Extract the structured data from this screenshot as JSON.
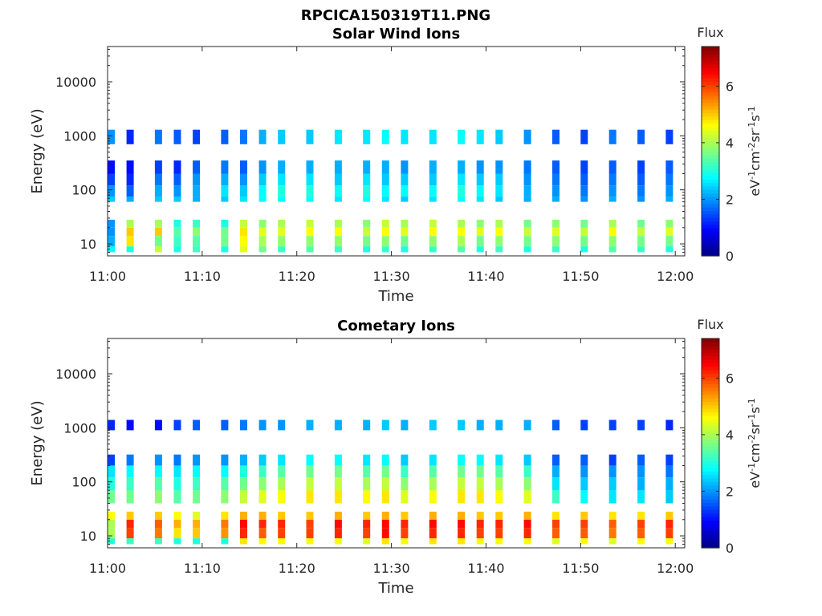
{
  "figure": {
    "title": "RPCICA150319T11.PNG"
  },
  "chart_data": [
    {
      "type": "heatmap",
      "title": "Solar Wind Ions",
      "xlabel": "Time",
      "ylabel": "Energy (eV)",
      "x_ticks": [
        "11:00",
        "11:10",
        "11:20",
        "11:30",
        "11:40",
        "11:50",
        "12:00"
      ],
      "y_ticks": [
        "10",
        "100",
        "1000",
        "10000"
      ],
      "xlim": [
        "11:00",
        "12:01"
      ],
      "ylim": [
        6,
        45000
      ],
      "y_scale": "log",
      "colorbar": {
        "title": "Flux",
        "label": "eV-1cm-2sr-1s-1",
        "ticks": [
          "0",
          "2",
          "4",
          "6"
        ],
        "range": [
          0,
          7.4
        ],
        "colormap": "jet"
      },
      "scan_times": [
        "11:00",
        "11:02",
        "11:05",
        "11:07",
        "11:09",
        "11:12",
        "11:14",
        "11:16",
        "11:18",
        "11:21",
        "11:24",
        "11:27",
        "11:29",
        "11:31",
        "11:34",
        "11:37",
        "11:39",
        "11:41",
        "11:44",
        "11:47",
        "11:50",
        "11:53",
        "11:56",
        "11:59"
      ],
      "bands": [
        {
          "energy_min": 7,
          "energy_max": 9,
          "flux": [
            2.8,
            3.0,
            4.2,
            3.0,
            3.2,
            3.0,
            4.4,
            3.6,
            3.2,
            3.4,
            3.2,
            3.0,
            3.2,
            3.0,
            3.2,
            3.4,
            3.0,
            3.2,
            3.0,
            3.2,
            3.0,
            3.4,
            3.2,
            3.0
          ]
        },
        {
          "energy_min": 9,
          "energy_max": 14,
          "flux": [
            2.2,
            4.8,
            3.6,
            3.2,
            3.4,
            3.6,
            4.6,
            4.0,
            3.8,
            3.8,
            3.8,
            3.6,
            3.8,
            3.6,
            3.8,
            4.0,
            3.6,
            3.8,
            3.6,
            3.8,
            3.6,
            3.8,
            3.6,
            3.6
          ]
        },
        {
          "energy_min": 14,
          "energy_max": 20,
          "flux": [
            2.0,
            5.0,
            5.0,
            3.4,
            3.8,
            3.6,
            4.8,
            4.4,
            4.4,
            4.6,
            4.6,
            4.2,
            4.6,
            4.4,
            4.6,
            4.6,
            4.4,
            4.6,
            4.2,
            4.4,
            4.2,
            4.6,
            4.2,
            4.4
          ]
        },
        {
          "energy_min": 20,
          "energy_max": 28,
          "flux": [
            2.0,
            4.0,
            4.0,
            3.0,
            3.2,
            3.0,
            4.2,
            3.8,
            4.0,
            4.2,
            4.0,
            3.8,
            4.2,
            4.0,
            4.2,
            4.0,
            3.8,
            4.0,
            3.6,
            3.8,
            3.6,
            4.0,
            3.6,
            3.8
          ]
        },
        {
          "energy_min": 60,
          "energy_max": 75,
          "flux": [
            2.4,
            2.2,
            2.4,
            2.4,
            2.2,
            2.4,
            2.6,
            2.8,
            2.8,
            2.8,
            2.6,
            2.8,
            2.6,
            2.4,
            2.6,
            2.8,
            2.6,
            2.4,
            2.2,
            2.2,
            2.0,
            2.2,
            2.0,
            2.2
          ]
        },
        {
          "energy_min": 75,
          "energy_max": 120,
          "flux": [
            2.0,
            1.6,
            2.2,
            2.0,
            2.2,
            2.6,
            2.4,
            2.8,
            3.0,
            3.0,
            2.8,
            3.0,
            2.8,
            2.8,
            2.8,
            3.0,
            2.8,
            2.6,
            2.2,
            2.0,
            1.8,
            2.0,
            1.8,
            2.0
          ]
        },
        {
          "energy_min": 120,
          "energy_max": 200,
          "flux": [
            1.4,
            1.2,
            1.8,
            1.6,
            2.0,
            2.2,
            2.0,
            2.4,
            2.6,
            2.6,
            2.4,
            2.6,
            2.4,
            2.4,
            2.4,
            2.6,
            2.4,
            2.4,
            2.0,
            1.8,
            1.6,
            1.8,
            1.6,
            1.8
          ]
        },
        {
          "energy_min": 200,
          "energy_max": 350,
          "flux": [
            1.0,
            1.0,
            1.4,
            1.2,
            1.6,
            1.8,
            1.6,
            2.0,
            2.2,
            2.2,
            2.2,
            2.2,
            2.2,
            2.0,
            2.2,
            2.2,
            2.0,
            2.0,
            1.8,
            1.6,
            1.4,
            1.6,
            1.4,
            1.6
          ]
        },
        {
          "energy_min": 700,
          "energy_max": 1300,
          "flux": [
            2.0,
            1.2,
            1.8,
            1.6,
            1.4,
            1.6,
            1.8,
            2.2,
            2.4,
            2.4,
            2.6,
            2.6,
            2.8,
            2.6,
            2.6,
            2.8,
            2.6,
            2.4,
            2.0,
            1.6,
            1.4,
            1.8,
            1.6,
            1.4
          ]
        }
      ]
    },
    {
      "type": "heatmap",
      "title": "Cometary Ions",
      "xlabel": "Time",
      "ylabel": "Energy (eV)",
      "x_ticks": [
        "11:00",
        "11:10",
        "11:20",
        "11:30",
        "11:40",
        "11:50",
        "12:00"
      ],
      "y_ticks": [
        "10",
        "100",
        "1000",
        "10000"
      ],
      "xlim": [
        "11:00",
        "12:01"
      ],
      "ylim": [
        6,
        45000
      ],
      "y_scale": "log",
      "colorbar": {
        "title": "Flux",
        "label": "eV-1cm-2sr-1s-1",
        "ticks": [
          "0",
          "2",
          "4",
          "6"
        ],
        "range": [
          0,
          7.4
        ],
        "colormap": "jet"
      },
      "scan_times": [
        "11:00",
        "11:02",
        "11:05",
        "11:07",
        "11:09",
        "11:12",
        "11:14",
        "11:16",
        "11:18",
        "11:21",
        "11:24",
        "11:27",
        "11:29",
        "11:31",
        "11:34",
        "11:37",
        "11:39",
        "11:41",
        "11:44",
        "11:47",
        "11:50",
        "11:53",
        "11:56",
        "11:59"
      ],
      "bands": [
        {
          "energy_min": 7,
          "energy_max": 9,
          "flux": [
            3.0,
            3.2,
            3.2,
            3.0,
            3.0,
            3.0,
            4.8,
            4.6,
            4.6,
            4.6,
            4.6,
            4.4,
            4.8,
            4.6,
            4.8,
            4.8,
            4.6,
            4.6,
            4.6,
            4.4,
            4.6,
            4.4,
            4.6,
            4.6
          ]
        },
        {
          "energy_min": 9,
          "energy_max": 14,
          "flux": [
            4.0,
            6.0,
            5.6,
            4.8,
            5.0,
            5.4,
            6.2,
            5.8,
            6.0,
            6.0,
            6.2,
            6.0,
            6.4,
            6.0,
            6.2,
            6.2,
            6.0,
            6.0,
            6.2,
            5.8,
            5.8,
            5.6,
            5.8,
            6.0
          ]
        },
        {
          "energy_min": 14,
          "energy_max": 20,
          "flux": [
            4.0,
            6.2,
            5.8,
            5.2,
            5.2,
            5.6,
            6.4,
            6.2,
            6.2,
            6.0,
            6.4,
            6.2,
            6.4,
            6.2,
            6.4,
            6.4,
            6.2,
            6.2,
            6.4,
            6.0,
            6.0,
            5.8,
            6.0,
            6.2
          ]
        },
        {
          "energy_min": 20,
          "energy_max": 28,
          "flux": [
            4.6,
            5.0,
            5.0,
            4.6,
            4.4,
            4.8,
            5.2,
            5.2,
            5.0,
            5.0,
            5.2,
            5.0,
            5.2,
            5.0,
            5.2,
            5.2,
            5.0,
            5.0,
            5.2,
            4.8,
            5.0,
            4.8,
            4.8,
            5.0
          ]
        },
        {
          "energy_min": 40,
          "energy_max": 70,
          "flux": [
            3.6,
            3.6,
            3.8,
            3.4,
            3.6,
            3.8,
            4.2,
            4.4,
            4.6,
            4.8,
            4.8,
            4.6,
            4.8,
            4.4,
            4.6,
            4.8,
            4.8,
            4.6,
            4.4,
            3.2,
            2.8,
            2.6,
            2.6,
            2.4
          ]
        },
        {
          "energy_min": 70,
          "energy_max": 120,
          "flux": [
            3.0,
            3.2,
            3.4,
            3.0,
            3.2,
            3.4,
            3.6,
            3.8,
            4.0,
            4.2,
            4.2,
            4.0,
            4.2,
            3.8,
            4.0,
            4.2,
            4.2,
            4.0,
            3.8,
            2.6,
            2.4,
            2.4,
            2.2,
            2.2
          ]
        },
        {
          "energy_min": 120,
          "energy_max": 200,
          "flux": [
            2.6,
            2.8,
            2.8,
            2.6,
            2.8,
            2.8,
            3.0,
            3.2,
            3.4,
            3.6,
            3.6,
            3.4,
            3.6,
            3.2,
            3.4,
            3.6,
            3.6,
            3.4,
            3.2,
            2.2,
            2.0,
            2.0,
            2.0,
            1.8
          ]
        },
        {
          "energy_min": 200,
          "energy_max": 320,
          "flux": [
            1.4,
            1.8,
            2.0,
            1.8,
            2.0,
            2.0,
            2.2,
            2.4,
            2.6,
            2.8,
            2.8,
            2.6,
            2.8,
            2.4,
            2.6,
            2.8,
            2.8,
            2.6,
            2.4,
            1.6,
            1.6,
            1.4,
            1.6,
            1.4
          ]
        },
        {
          "energy_min": 900,
          "energy_max": 1400,
          "flux": [
            1.2,
            1.0,
            1.0,
            1.4,
            1.6,
            1.6,
            1.8,
            2.0,
            2.0,
            2.2,
            2.2,
            2.2,
            2.4,
            2.2,
            2.4,
            2.4,
            2.2,
            2.2,
            2.2,
            1.6,
            1.4,
            1.4,
            1.4,
            1.2
          ]
        }
      ]
    }
  ]
}
